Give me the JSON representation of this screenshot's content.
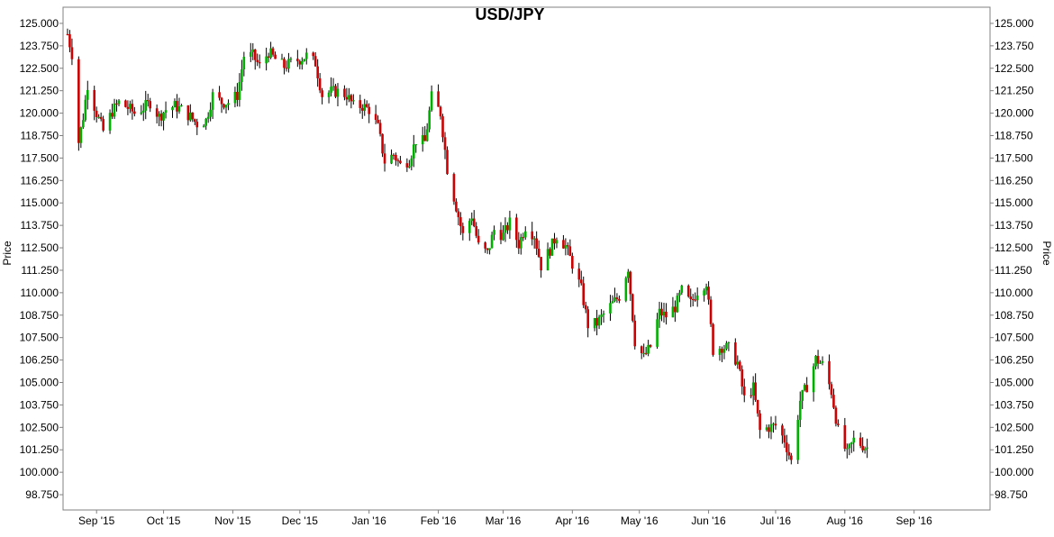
{
  "chart_data": {
    "type": "candlestick",
    "title": "USD/JPY",
    "ylabel_left": "Price",
    "ylabel_right": "Price",
    "xlabel": "",
    "ylim": [
      97.9,
      125.9
    ],
    "yticks": [
      "125.000",
      "123.750",
      "122.500",
      "121.250",
      "120.000",
      "118.750",
      "117.500",
      "116.250",
      "115.000",
      "113.750",
      "112.500",
      "111.250",
      "110.000",
      "108.750",
      "107.500",
      "106.250",
      "105.000",
      "103.750",
      "102.500",
      "101.250",
      "100.000",
      "98.750"
    ],
    "xlim": [
      "2015-08-17",
      "2016-10-05"
    ],
    "xticks": [
      {
        "label": "Sep '15",
        "date": "2015-09-01"
      },
      {
        "label": "Oct '15",
        "date": "2015-10-01"
      },
      {
        "label": "Nov '15",
        "date": "2015-11-01"
      },
      {
        "label": "Dec '15",
        "date": "2015-12-01"
      },
      {
        "label": "Jan '16",
        "date": "2016-01-01"
      },
      {
        "label": "Feb '16",
        "date": "2016-02-01"
      },
      {
        "label": "Mar '16",
        "date": "2016-03-01"
      },
      {
        "label": "Apr '16",
        "date": "2016-04-01"
      },
      {
        "label": "May '16",
        "date": "2016-05-01"
      },
      {
        "label": "Jun '16",
        "date": "2016-06-01"
      },
      {
        "label": "Jul '16",
        "date": "2016-07-01"
      },
      {
        "label": "Aug '16",
        "date": "2016-08-01"
      },
      {
        "label": "Sep '16",
        "date": "2016-09-01"
      }
    ],
    "grid": false,
    "colors": {
      "up": "#00b000",
      "down": "#cc0000",
      "wick": "#000000"
    },
    "closes": [
      {
        "date": "2015-08-19",
        "close": 124.4
      },
      {
        "date": "2015-08-21",
        "close": 123.3
      },
      {
        "date": "2015-08-24",
        "close": 118.4
      },
      {
        "date": "2015-08-26",
        "close": 119.8
      },
      {
        "date": "2015-08-28",
        "close": 121.6
      },
      {
        "date": "2015-09-01",
        "close": 120.0
      },
      {
        "date": "2015-09-04",
        "close": 119.0
      },
      {
        "date": "2015-09-08",
        "close": 120.1
      },
      {
        "date": "2015-09-11",
        "close": 120.6
      },
      {
        "date": "2015-09-15",
        "close": 120.3
      },
      {
        "date": "2015-09-18",
        "close": 120.0
      },
      {
        "date": "2015-09-22",
        "close": 120.3
      },
      {
        "date": "2015-09-25",
        "close": 120.6
      },
      {
        "date": "2015-09-29",
        "close": 119.8
      },
      {
        "date": "2015-10-02",
        "close": 120.2
      },
      {
        "date": "2015-10-06",
        "close": 120.4
      },
      {
        "date": "2015-10-09",
        "close": 120.2
      },
      {
        "date": "2015-10-13",
        "close": 119.8
      },
      {
        "date": "2015-10-16",
        "close": 119.4
      },
      {
        "date": "2015-10-20",
        "close": 119.6
      },
      {
        "date": "2015-10-23",
        "close": 121.0
      },
      {
        "date": "2015-10-27",
        "close": 120.6
      },
      {
        "date": "2015-10-30",
        "close": 120.6
      },
      {
        "date": "2015-11-03",
        "close": 121.0
      },
      {
        "date": "2015-11-06",
        "close": 123.2
      },
      {
        "date": "2015-11-10",
        "close": 123.2
      },
      {
        "date": "2015-11-13",
        "close": 122.6
      },
      {
        "date": "2015-11-17",
        "close": 123.4
      },
      {
        "date": "2015-11-20",
        "close": 123.0
      },
      {
        "date": "2015-11-24",
        "close": 122.6
      },
      {
        "date": "2015-11-27",
        "close": 122.8
      },
      {
        "date": "2015-12-01",
        "close": 123.0
      },
      {
        "date": "2015-12-04",
        "close": 123.2
      },
      {
        "date": "2015-12-08",
        "close": 122.8
      },
      {
        "date": "2015-12-11",
        "close": 121.0
      },
      {
        "date": "2015-12-15",
        "close": 121.2
      },
      {
        "date": "2015-12-18",
        "close": 121.2
      },
      {
        "date": "2015-12-22",
        "close": 121.0
      },
      {
        "date": "2015-12-25",
        "close": 120.4
      },
      {
        "date": "2015-12-29",
        "close": 120.4
      },
      {
        "date": "2016-01-01",
        "close": 120.2
      },
      {
        "date": "2016-01-05",
        "close": 119.2
      },
      {
        "date": "2016-01-08",
        "close": 117.3
      },
      {
        "date": "2016-01-12",
        "close": 117.7
      },
      {
        "date": "2016-01-15",
        "close": 117.1
      },
      {
        "date": "2016-01-19",
        "close": 117.4
      },
      {
        "date": "2016-01-22",
        "close": 118.5
      },
      {
        "date": "2016-01-26",
        "close": 118.4
      },
      {
        "date": "2016-01-29",
        "close": 120.9
      },
      {
        "date": "2016-02-02",
        "close": 120.0
      },
      {
        "date": "2016-02-05",
        "close": 116.9
      },
      {
        "date": "2016-02-09",
        "close": 114.8
      },
      {
        "date": "2016-02-12",
        "close": 113.2
      },
      {
        "date": "2016-02-16",
        "close": 114.3
      },
      {
        "date": "2016-02-19",
        "close": 112.6
      },
      {
        "date": "2016-02-23",
        "close": 112.2
      },
      {
        "date": "2016-02-26",
        "close": 113.5
      },
      {
        "date": "2016-03-01",
        "close": 113.2
      },
      {
        "date": "2016-03-04",
        "close": 113.9
      },
      {
        "date": "2016-03-08",
        "close": 112.7
      },
      {
        "date": "2016-03-11",
        "close": 113.7
      },
      {
        "date": "2016-03-15",
        "close": 113.2
      },
      {
        "date": "2016-03-18",
        "close": 111.5
      },
      {
        "date": "2016-03-22",
        "close": 112.4
      },
      {
        "date": "2016-03-25",
        "close": 113.2
      },
      {
        "date": "2016-03-29",
        "close": 112.6
      },
      {
        "date": "2016-04-01",
        "close": 111.6
      },
      {
        "date": "2016-04-05",
        "close": 110.2
      },
      {
        "date": "2016-04-08",
        "close": 108.2
      },
      {
        "date": "2016-04-12",
        "close": 108.3
      },
      {
        "date": "2016-04-15",
        "close": 108.8
      },
      {
        "date": "2016-04-19",
        "close": 109.4
      },
      {
        "date": "2016-04-22",
        "close": 109.8
      },
      {
        "date": "2016-04-26",
        "close": 111.4
      },
      {
        "date": "2016-04-29",
        "close": 107.3
      },
      {
        "date": "2016-05-03",
        "close": 106.4
      },
      {
        "date": "2016-05-06",
        "close": 107.0
      },
      {
        "date": "2016-05-10",
        "close": 108.9
      },
      {
        "date": "2016-05-13",
        "close": 108.7
      },
      {
        "date": "2016-05-17",
        "close": 109.2
      },
      {
        "date": "2016-05-20",
        "close": 110.1
      },
      {
        "date": "2016-05-24",
        "close": 109.4
      },
      {
        "date": "2016-05-27",
        "close": 110.1
      },
      {
        "date": "2016-05-31",
        "close": 110.6
      },
      {
        "date": "2016-06-03",
        "close": 106.8
      },
      {
        "date": "2016-06-07",
        "close": 107.0
      },
      {
        "date": "2016-06-10",
        "close": 106.9
      },
      {
        "date": "2016-06-14",
        "close": 106.1
      },
      {
        "date": "2016-06-17",
        "close": 104.1
      },
      {
        "date": "2016-06-21",
        "close": 104.7
      },
      {
        "date": "2016-06-24",
        "close": 102.3
      },
      {
        "date": "2016-06-28",
        "close": 102.5
      },
      {
        "date": "2016-07-01",
        "close": 102.6
      },
      {
        "date": "2016-07-05",
        "close": 101.8
      },
      {
        "date": "2016-07-08",
        "close": 100.6
      },
      {
        "date": "2016-07-12",
        "close": 104.0
      },
      {
        "date": "2016-07-15",
        "close": 104.8
      },
      {
        "date": "2016-07-19",
        "close": 106.3
      },
      {
        "date": "2016-07-22",
        "close": 106.0
      },
      {
        "date": "2016-07-26",
        "close": 104.5
      },
      {
        "date": "2016-07-29",
        "close": 102.3
      },
      {
        "date": "2016-08-02",
        "close": 101.0
      },
      {
        "date": "2016-08-05",
        "close": 101.8
      },
      {
        "date": "2016-08-09",
        "close": 101.5
      },
      {
        "date": "2016-08-12",
        "close": 101.3
      }
    ]
  }
}
